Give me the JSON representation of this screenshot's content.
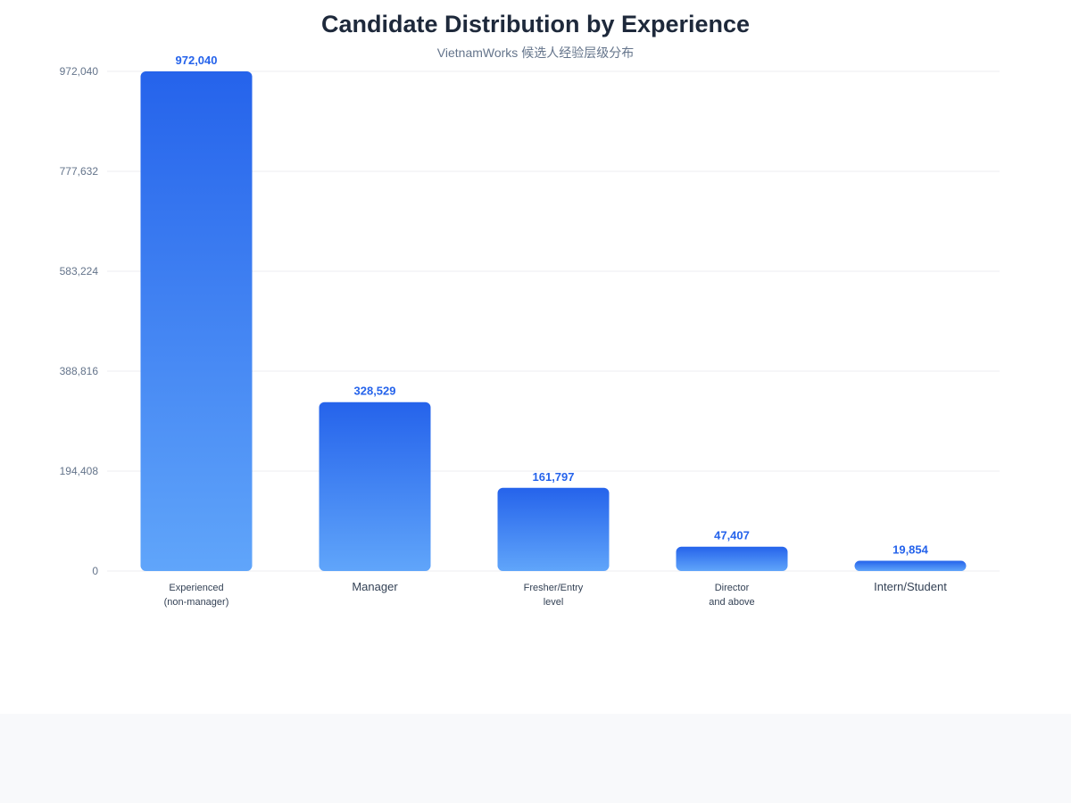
{
  "title": "Candidate Distribution by Experience",
  "subtitle": "VietnamWorks 候选人经验层级分布",
  "colors": {
    "bar_top": "#2563eb",
    "bar_bottom": "#60a5fa",
    "value_label": "#2563eb",
    "title": "#1e293b",
    "axis_text": "#64748b",
    "category_text": "#334155",
    "grid": "#ececf1",
    "footer_band": "#f8f9fb"
  },
  "chart_data": {
    "type": "bar",
    "title": "Candidate Distribution by Experience",
    "subtitle": "VietnamWorks 候选人经验层级分布",
    "xlabel": "",
    "ylabel": "",
    "categories": [
      [
        "Experienced",
        "(non-manager)"
      ],
      [
        "Manager"
      ],
      [
        "Fresher/Entry",
        "level"
      ],
      [
        "Director",
        "and above"
      ],
      [
        "Intern/Student"
      ]
    ],
    "values": [
      972040,
      328529,
      161797,
      47407,
      19854
    ],
    "value_labels": [
      "972,040",
      "328,529",
      "161,797",
      "47,407",
      "19,854"
    ],
    "ylim": [
      0,
      972040
    ],
    "yticks": [
      0,
      194408,
      388816,
      583224,
      777632,
      972040
    ],
    "ytick_labels": [
      "0",
      "194,408",
      "388,816",
      "583,224",
      "777,632",
      "972,040"
    ],
    "grid": true,
    "legend": "none"
  }
}
